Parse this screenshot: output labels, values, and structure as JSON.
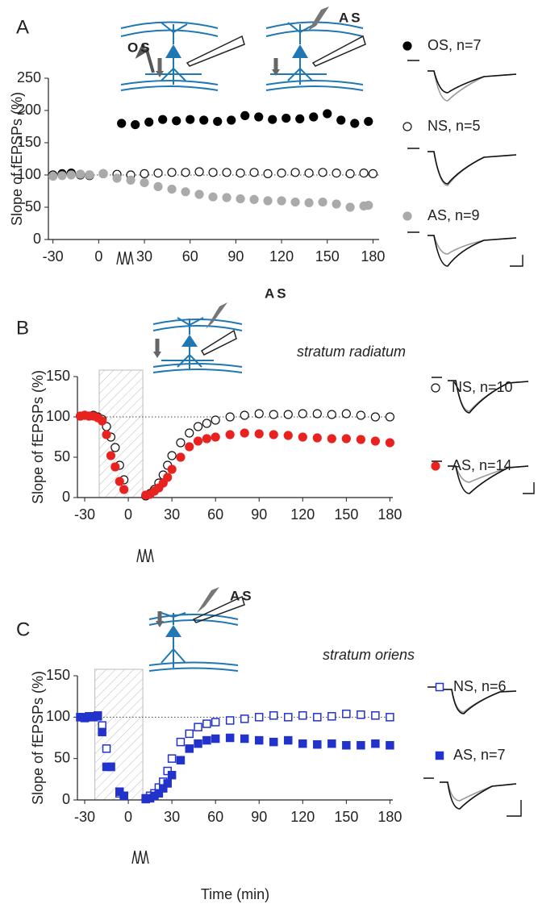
{
  "chart_data": [
    {
      "type": "scatter",
      "panel": "A",
      "ylabel": "Slope of fEPSPs (%)",
      "annotations": [
        "OS",
        "AS"
      ],
      "xlim": [
        -33,
        184
      ],
      "ylim": [
        0,
        250
      ],
      "xticks": [
        -30,
        0,
        30,
        60,
        90,
        120,
        150,
        180
      ],
      "yticks": [
        0,
        50,
        100,
        150,
        200,
        250
      ],
      "reference_line": 100,
      "series": [
        {
          "name": "OS, n=7",
          "color": "#000000",
          "marker": "circle",
          "filled": true,
          "x": [
            -30,
            -24,
            -18,
            -12,
            -6,
            15,
            24,
            33,
            42,
            51,
            60,
            69,
            78,
            87,
            96,
            105,
            114,
            123,
            132,
            141,
            150,
            159,
            168,
            177
          ],
          "values": [
            100,
            102,
            103,
            101,
            100,
            180,
            178,
            182,
            186,
            184,
            186,
            185,
            183,
            185,
            192,
            190,
            186,
            188,
            187,
            190,
            195,
            185,
            180,
            183
          ]
        },
        {
          "name": "NS, n=5",
          "color": "#000000",
          "marker": "circle",
          "filled": false,
          "x": [
            -30,
            -24,
            -18,
            -12,
            -6,
            3,
            12,
            21,
            30,
            39,
            48,
            57,
            66,
            75,
            84,
            93,
            102,
            111,
            120,
            129,
            138,
            147,
            156,
            165,
            174,
            180
          ],
          "values": [
            100,
            100,
            101,
            100,
            99,
            102,
            101,
            100,
            102,
            103,
            104,
            104,
            105,
            104,
            104,
            103,
            104,
            102,
            103,
            104,
            103,
            104,
            103,
            102,
            103,
            102
          ]
        },
        {
          "name": "AS, n=9",
          "color": "#aaaaaa",
          "marker": "circle",
          "filled": true,
          "x": [
            -30,
            -24,
            -18,
            -12,
            -6,
            3,
            12,
            21,
            30,
            39,
            48,
            57,
            66,
            75,
            84,
            93,
            102,
            111,
            120,
            129,
            138,
            147,
            156,
            165,
            174,
            177
          ],
          "values": [
            98,
            99,
            100,
            101,
            100,
            102,
            95,
            92,
            88,
            82,
            78,
            74,
            70,
            66,
            65,
            63,
            62,
            60,
            60,
            58,
            57,
            58,
            55,
            50,
            52,
            53
          ]
        }
      ]
    },
    {
      "type": "scatter",
      "panel": "B",
      "ylabel": "Slope of fEPSPs (%)",
      "annotations": [
        "AS",
        "stratum radiatum"
      ],
      "xlim": [
        -35,
        182
      ],
      "ylim": [
        0,
        150
      ],
      "xticks": [
        -30,
        0,
        30,
        60,
        90,
        120,
        150,
        180
      ],
      "yticks": [
        0,
        50,
        100,
        150
      ],
      "reference_line": 100,
      "shaded_region": [
        -20,
        10
      ],
      "series": [
        {
          "name": "NS, n=10",
          "color": "#e8231f",
          "marker": "circle",
          "filled": false,
          "x": [
            -33,
            -30,
            -27,
            -24,
            -21,
            -18,
            -15,
            -12,
            -9,
            -6,
            -3,
            12,
            15,
            18,
            21,
            24,
            27,
            30,
            36,
            42,
            48,
            54,
            60,
            70,
            80,
            90,
            100,
            110,
            120,
            130,
            140,
            150,
            160,
            170,
            180
          ],
          "values": [
            101,
            102,
            101,
            102,
            100,
            97,
            88,
            75,
            62,
            40,
            22,
            2,
            5,
            10,
            18,
            28,
            40,
            52,
            68,
            80,
            88,
            92,
            96,
            100,
            102,
            104,
            103,
            103,
            104,
            104,
            103,
            104,
            102,
            100,
            100
          ]
        },
        {
          "name": "AS, n=14",
          "color": "#e8231f",
          "marker": "circle",
          "filled": true,
          "x": [
            -33,
            -30,
            -27,
            -24,
            -21,
            -18,
            -15,
            -12,
            -9,
            -6,
            -3,
            12,
            15,
            18,
            21,
            24,
            27,
            30,
            36,
            42,
            48,
            54,
            60,
            70,
            80,
            90,
            100,
            110,
            120,
            130,
            140,
            150,
            160,
            170,
            180
          ],
          "values": [
            101,
            102,
            101,
            101,
            99,
            95,
            78,
            52,
            38,
            20,
            10,
            3,
            4,
            8,
            12,
            18,
            25,
            35,
            50,
            63,
            70,
            73,
            75,
            78,
            80,
            79,
            78,
            77,
            75,
            74,
            73,
            73,
            72,
            70,
            68
          ]
        }
      ]
    },
    {
      "type": "scatter",
      "panel": "C",
      "ylabel": "Slope of fEPSPs (%)",
      "xlabel": "Time (min)",
      "annotations": [
        "AS",
        "stratum oriens"
      ],
      "xlim": [
        -35,
        182
      ],
      "ylim": [
        0,
        150
      ],
      "xticks": [
        -30,
        0,
        30,
        60,
        90,
        120,
        150,
        180
      ],
      "yticks": [
        0,
        50,
        100,
        150
      ],
      "reference_line": 100,
      "shaded_region": [
        -23,
        10
      ],
      "series": [
        {
          "name": "NS, n=6",
          "color": "#2233cc",
          "marker": "square",
          "filled": false,
          "x": [
            -33,
            -30,
            -27,
            -24,
            -21,
            -18,
            -15,
            -12,
            -6,
            -3,
            12,
            15,
            18,
            21,
            24,
            27,
            30,
            36,
            42,
            48,
            54,
            60,
            70,
            80,
            90,
            100,
            110,
            120,
            130,
            140,
            150,
            160,
            170,
            180
          ],
          "values": [
            100,
            99,
            101,
            100,
            102,
            90,
            62,
            40,
            8,
            5,
            2,
            5,
            8,
            15,
            22,
            35,
            50,
            70,
            80,
            88,
            92,
            94,
            96,
            98,
            100,
            102,
            100,
            102,
            100,
            101,
            104,
            103,
            102,
            100
          ]
        },
        {
          "name": "AS, n=7",
          "color": "#2233cc",
          "marker": "square",
          "filled": true,
          "x": [
            -33,
            -30,
            -27,
            -24,
            -21,
            -18,
            -15,
            -12,
            -6,
            -3,
            12,
            15,
            18,
            21,
            24,
            27,
            30,
            36,
            42,
            48,
            54,
            60,
            70,
            80,
            90,
            100,
            110,
            120,
            130,
            140,
            150,
            160,
            170,
            180
          ],
          "values": [
            100,
            99,
            100,
            101,
            101,
            82,
            40,
            40,
            10,
            5,
            1,
            2,
            5,
            8,
            14,
            20,
            30,
            48,
            62,
            68,
            72,
            74,
            75,
            74,
            72,
            70,
            72,
            68,
            67,
            68,
            66,
            66,
            68,
            66
          ]
        }
      ]
    }
  ]
}
